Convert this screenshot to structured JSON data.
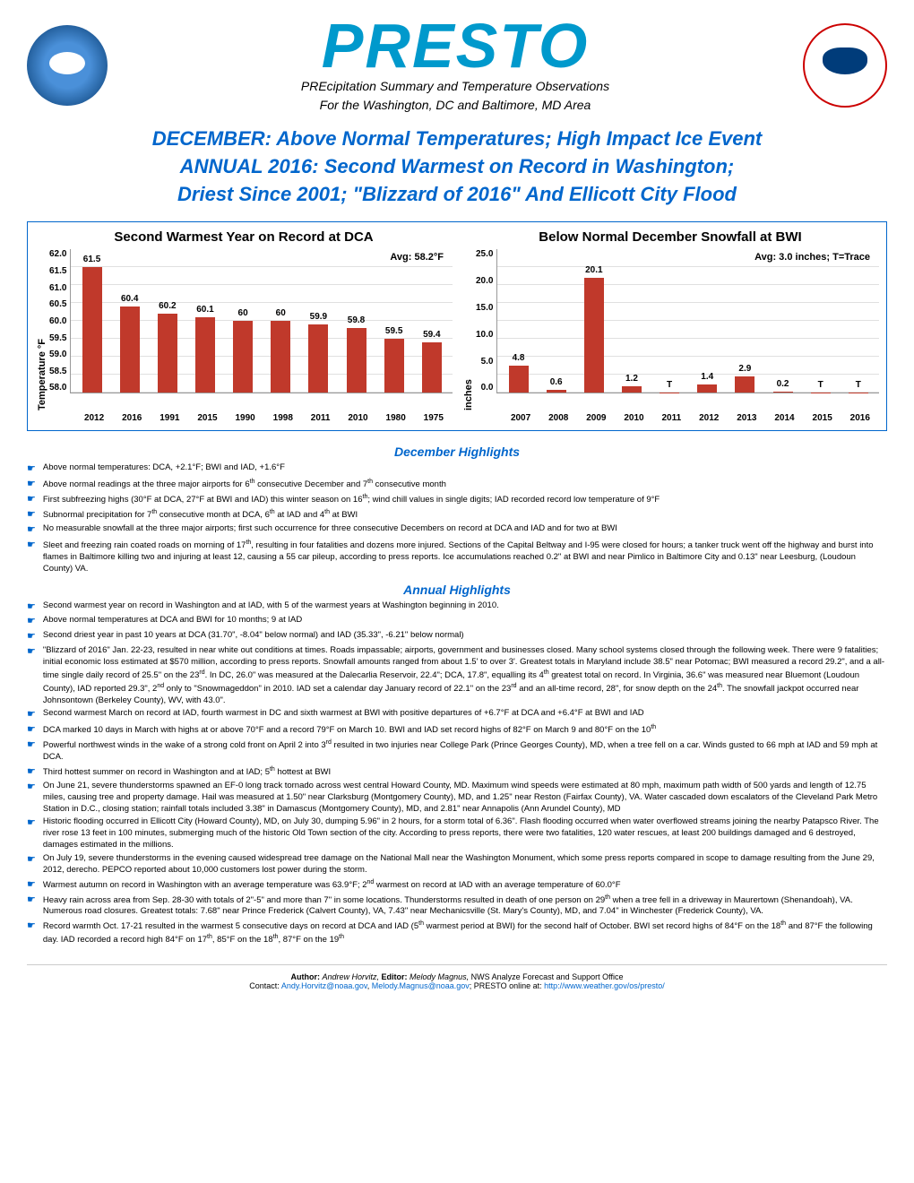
{
  "header": {
    "title": "PRESTO",
    "subtitle1": "PREcipitation Summary and Temperature Observations",
    "subtitle2": "For the Washington, DC and Baltimore, MD Area"
  },
  "headline": {
    "line1": "DECEMBER: Above Normal Temperatures; High Impact Ice Event",
    "line2": "ANNUAL 2016: Second Warmest on Record in Washington;",
    "line3": "Driest Since 2001; \"Blizzard of 2016\" And Ellicott City Flood"
  },
  "chart1": {
    "title": "Second Warmest Year on Record at DCA",
    "ylabel": "Temperature °F",
    "avg": "Avg: 58.2°F",
    "ylim": [
      58.0,
      62.0
    ],
    "ytick_step": 0.5,
    "bar_color": "#c0392b",
    "grid_color": "#e0e0e0",
    "categories": [
      "2012",
      "2016",
      "1991",
      "2015",
      "1990",
      "1998",
      "2011",
      "2010",
      "1980",
      "1975"
    ],
    "values": [
      61.5,
      60.4,
      60.2,
      60.1,
      60.0,
      60.0,
      59.9,
      59.8,
      59.5,
      59.4
    ]
  },
  "chart2": {
    "title": "Below Normal December Snowfall at BWI",
    "ylabel": "inches",
    "avg": "Avg: 3.0 inches; T=Trace",
    "ylim": [
      0.0,
      25.0
    ],
    "ytick_step": 5.0,
    "bar_color": "#c0392b",
    "grid_color": "#e0e0e0",
    "categories": [
      "2007",
      "2008",
      "2009",
      "2010",
      "2011",
      "2012",
      "2013",
      "2014",
      "2015",
      "2016"
    ],
    "values": [
      4.8,
      0.6,
      20.1,
      1.2,
      "T",
      1.4,
      2.9,
      0.2,
      "T",
      "T"
    ]
  },
  "dec_title": "December Highlights",
  "dec_highlights": [
    "Above normal temperatures: DCA, +2.1°F; BWI and IAD, +1.6°F",
    "Above normal readings at the three major airports for 6th consecutive December and 7th consecutive month",
    "First subfreezing highs (30°F at DCA, 27°F at BWI and IAD) this winter season on 16th; wind chill values in single digits; IAD recorded record low temperature of 9°F",
    "Subnormal precipitation for 7th consecutive month at DCA, 6th at IAD and 4th at BWI",
    "No measurable snowfall at the three major airports; first such occurrence for three consecutive Decembers on record at DCA and IAD and for two at BWI",
    "Sleet and freezing rain coated roads on morning of 17th, resulting in four fatalities and dozens more injured. Sections of the Capital Beltway and I-95 were closed for hours; a tanker truck went off the highway and burst into flames in Baltimore killing two and injuring at least 12, causing a 55 car pileup, according to press reports. Ice accumulations reached 0.2\" at BWI and near Pimlico in Baltimore City and 0.13\" near Leesburg, (Loudoun County) VA."
  ],
  "ann_title": "Annual Highlights",
  "ann_highlights": [
    "Second warmest year on record in Washington and at IAD, with 5 of the warmest years at Washington beginning in 2010.",
    "Above normal temperatures at DCA and BWI for 10 months; 9 at IAD",
    "Second driest year in past 10 years at DCA (31.70\", -8.04\" below normal) and IAD (35.33\", -6.21\" below normal)",
    "\"Blizzard of 2016\" Jan. 22-23, resulted in near white out conditions at times. Roads impassable; airports, government and businesses closed. Many school systems closed through the following week. There were 9 fatalities; initial economic loss estimated at $570 million, according to press reports. Snowfall amounts ranged from about 1.5' to over 3'. Greatest totals in Maryland include 38.5\" near Potomac; BWI measured a record 29.2\", and a all-time single daily record of 25.5\" on the 23rd. In DC, 26.0\" was measured at the Dalecarlia Reservoir, 22.4\"; DCA, 17.8\", equalling its 4th greatest total on record. In Virginia, 36.6\" was measured near Bluemont (Loudoun County), IAD reported 29.3\", 2nd only to \"Snowmageddon\" in 2010. IAD set a calendar day January record of 22.1\" on the 23rd and an all-time record, 28\", for snow depth on the 24th. The snowfall jackpot occurred near Johnsontown (Berkeley County), WV, with 43.0\".",
    "Second warmest March on record at IAD, fourth warmest in DC and sixth warmest at BWI with positive departures of +6.7°F at DCA and +6.4°F at BWI and IAD",
    "DCA marked 10 days in March with highs at or above 70°F and a record 79°F on March 10. BWI and IAD set record highs of 82°F on March 9 and 80°F on the 10th",
    "Powerful northwest winds in the wake of a strong cold front on April 2 into 3rd resulted in two injuries near College Park (Prince Georges County), MD, when a tree fell on a car. Winds gusted to 66 mph at IAD and 59 mph at DCA.",
    "Third hottest summer on record in Washington and at IAD; 5th hottest at BWI",
    "On June 21, severe thunderstorms spawned an EF-0 long track tornado across west central Howard County, MD. Maximum wind speeds were estimated at 80 mph, maximum path width of 500 yards and length of 12.75 miles, causing tree and property damage. Hail was measured at 1.50\" near Clarksburg (Montgomery County), MD, and 1.25\" near Reston (Fairfax County), VA. Water cascaded down escalators of the Cleveland Park Metro Station in D.C., closing station; rainfall totals included 3.38\" in Damascus (Montgomery County), MD, and 2.81\" near Annapolis (Ann Arundel County), MD",
    "Historic flooding occurred in Ellicott City (Howard County), MD, on July 30, dumping 5.96\" in 2 hours, for a storm total of 6.36\". Flash flooding occurred when water overflowed streams joining the nearby Patapsco River. The river rose 13 feet in 100 minutes, submerging much of the historic Old Town section of the city. According to press reports, there were two fatalities, 120 water rescues, at least 200 buildings damaged and 6 destroyed, damages estimated in the millions.",
    "On July 19, severe thunderstorms in the evening caused widespread tree damage on the National Mall near the Washington Monument, which some press reports compared in scope to damage resulting from the June 29, 2012, derecho. PEPCO reported about 10,000 customers lost power during the storm.",
    "Warmest autumn on record in Washington with an average temperature was 63.9°F; 2nd warmest on record at IAD with an average temperature of 60.0°F",
    "Heavy rain across area from Sep. 28-30 with totals of 2\"-5\" and more than 7\" in some locations. Thunderstorms resulted in death of one person on 29th when a tree fell in a driveway in Maurertown (Shenandoah), VA.  Numerous road closures. Greatest totals: 7.68\" near Prince Frederick (Calvert County), VA, 7.43\" near Mechanicsville (St. Mary's County), MD, and 7.04\" in Winchester (Frederick County), VA.",
    "Record warmth Oct. 17-21 resulted in the warmest 5 consecutive days on record at DCA and IAD (5th warmest period at BWI) for the second half of October. BWI set record highs of 84°F on the 18th and 87°F the following day. IAD recorded a record high 84°F on 17th, 85°F on the 18th, 87°F on the 19th"
  ],
  "footer": {
    "author_label": "Author:",
    "author": "Andrew Horvitz,",
    "editor_label": "Editor:",
    "editor": "Melody Magnus,",
    "org": "NWS Analyze Forecast and Support Office",
    "contact_label": "Contact:",
    "email1": "Andy.Horvitz@noaa.gov",
    "email2": "Melody.Magnus@noaa.gov",
    "online_label": "; PRESTO online at:",
    "url": "http://www.weather.gov/os/presto/"
  }
}
